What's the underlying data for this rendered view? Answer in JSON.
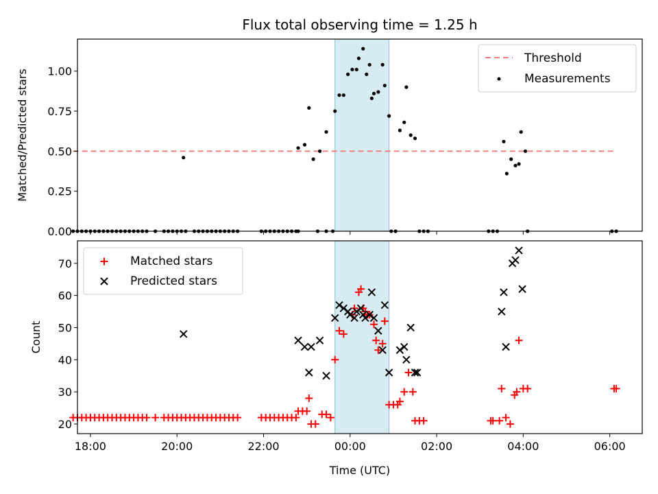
{
  "chart_data": [
    {
      "type": "scatter",
      "panel": "top",
      "title": "Flux total observing time = 1.25 h",
      "xlabel": "",
      "ylabel": "Matched/Predicted stars",
      "xlim": [
        -6.3,
        6.75
      ],
      "ylim": [
        0.0,
        1.2
      ],
      "x_unit": "hours relative to 00:00 UTC",
      "yticks": [
        0.0,
        0.25,
        0.5,
        0.75,
        1.0
      ],
      "ytick_labels": [
        "0.00",
        "0.25",
        "0.50",
        "0.75",
        "1.00"
      ],
      "xticks": [
        -6,
        -4,
        -2,
        0,
        2,
        4,
        6
      ],
      "xtick_labels": [
        "18:00",
        "20:00",
        "22:00",
        "00:00",
        "02:00",
        "04:00",
        "06:00"
      ],
      "highlight_span": [
        -0.35,
        0.9
      ],
      "threshold": {
        "name": "Threshold",
        "value": 0.5,
        "x_range": [
          -6.4,
          6.15
        ],
        "color": "#f08080"
      },
      "legend": {
        "position": "upper right",
        "entries": [
          "Threshold",
          "Measurements"
        ]
      },
      "series": [
        {
          "name": "Measurements",
          "color": "#000000",
          "points": [
            [
              -6.4,
              0
            ],
            [
              -6.3,
              0
            ],
            [
              -6.2,
              0
            ],
            [
              -6.1,
              0
            ],
            [
              -6.0,
              0
            ],
            [
              -5.9,
              0
            ],
            [
              -5.8,
              0
            ],
            [
              -5.7,
              0
            ],
            [
              -5.6,
              0
            ],
            [
              -5.5,
              0
            ],
            [
              -5.4,
              0
            ],
            [
              -5.3,
              0
            ],
            [
              -5.2,
              0
            ],
            [
              -5.1,
              0
            ],
            [
              -5.0,
              0
            ],
            [
              -4.9,
              0
            ],
            [
              -4.8,
              0
            ],
            [
              -4.7,
              0
            ],
            [
              -4.5,
              0
            ],
            [
              -4.3,
              0
            ],
            [
              -4.2,
              0
            ],
            [
              -4.1,
              0
            ],
            [
              -4.0,
              0
            ],
            [
              -3.9,
              0
            ],
            [
              -3.8,
              0
            ],
            [
              -3.85,
              0.46
            ],
            [
              -3.6,
              0
            ],
            [
              -3.5,
              0
            ],
            [
              -3.4,
              0
            ],
            [
              -3.3,
              0
            ],
            [
              -3.2,
              0
            ],
            [
              -3.1,
              0
            ],
            [
              -3.0,
              0
            ],
            [
              -2.9,
              0
            ],
            [
              -2.8,
              0
            ],
            [
              -2.7,
              0
            ],
            [
              -2.6,
              0
            ],
            [
              -2.05,
              0
            ],
            [
              -1.95,
              0
            ],
            [
              -1.85,
              0
            ],
            [
              -1.75,
              0
            ],
            [
              -1.65,
              0
            ],
            [
              -1.55,
              0
            ],
            [
              -1.45,
              0
            ],
            [
              -1.35,
              0
            ],
            [
              -1.25,
              0
            ],
            [
              -1.2,
              0
            ],
            [
              -1.2,
              0.52
            ],
            [
              -1.05,
              0.54
            ],
            [
              -0.95,
              0.77
            ],
            [
              -0.85,
              0.45
            ],
            [
              -0.7,
              0.5
            ],
            [
              -0.55,
              0.62
            ],
            [
              -0.35,
              0.75
            ],
            [
              -0.75,
              0
            ],
            [
              -0.55,
              0
            ],
            [
              -0.4,
              0
            ],
            [
              -0.25,
              0.85
            ],
            [
              -0.15,
              0.85
            ],
            [
              -0.05,
              0.98
            ],
            [
              0.05,
              1.01
            ],
            [
              0.15,
              1.01
            ],
            [
              0.2,
              1.08
            ],
            [
              0.3,
              1.14
            ],
            [
              0.38,
              0.98
            ],
            [
              0.45,
              1.04
            ],
            [
              0.5,
              0.83
            ],
            [
              0.55,
              0.86
            ],
            [
              0.65,
              0.87
            ],
            [
              0.75,
              1.04
            ],
            [
              0.8,
              0.91
            ],
            [
              0.9,
              0.72
            ],
            [
              1.15,
              0.63
            ],
            [
              1.25,
              0.68
            ],
            [
              1.3,
              0.9
            ],
            [
              1.4,
              0.6
            ],
            [
              1.5,
              0.58
            ],
            [
              0.95,
              0
            ],
            [
              1.05,
              0
            ],
            [
              1.6,
              0
            ],
            [
              1.7,
              0
            ],
            [
              1.8,
              0
            ],
            [
              3.2,
              0
            ],
            [
              3.3,
              0
            ],
            [
              3.4,
              0
            ],
            [
              3.55,
              0.56
            ],
            [
              3.62,
              0.36
            ],
            [
              3.72,
              0.45
            ],
            [
              3.82,
              0.41
            ],
            [
              3.9,
              0.42
            ],
            [
              3.95,
              0.62
            ],
            [
              4.05,
              0.5
            ],
            [
              4.1,
              0
            ],
            [
              6.05,
              0
            ],
            [
              6.15,
              0
            ]
          ]
        }
      ]
    },
    {
      "type": "scatter",
      "panel": "bottom",
      "title": "",
      "xlabel": "Time (UTC)",
      "ylabel": "Count",
      "xlim": [
        -6.3,
        6.75
      ],
      "ylim": [
        17,
        77
      ],
      "x_unit": "hours relative to 00:00 UTC",
      "yticks": [
        20,
        30,
        40,
        50,
        60,
        70
      ],
      "ytick_labels": [
        "20",
        "30",
        "40",
        "50",
        "60",
        "70"
      ],
      "xticks": [
        -6,
        -4,
        -2,
        0,
        2,
        4,
        6
      ],
      "xtick_labels": [
        "18:00",
        "20:00",
        "22:00",
        "00:00",
        "02:00",
        "04:00",
        "06:00"
      ],
      "highlight_span": [
        -0.35,
        0.9
      ],
      "legend": {
        "position": "upper left",
        "entries": [
          "Matched stars",
          "Predicted stars"
        ]
      },
      "series": [
        {
          "name": "Matched stars",
          "marker": "plus",
          "color": "#ff0000",
          "points": [
            [
              -6.4,
              22
            ],
            [
              -6.3,
              22
            ],
            [
              -6.2,
              22
            ],
            [
              -6.1,
              22
            ],
            [
              -6.0,
              22
            ],
            [
              -5.9,
              22
            ],
            [
              -5.8,
              22
            ],
            [
              -5.7,
              22
            ],
            [
              -5.6,
              22
            ],
            [
              -5.5,
              22
            ],
            [
              -5.4,
              22
            ],
            [
              -5.3,
              22
            ],
            [
              -5.2,
              22
            ],
            [
              -5.1,
              22
            ],
            [
              -5.0,
              22
            ],
            [
              -4.9,
              22
            ],
            [
              -4.8,
              22
            ],
            [
              -4.7,
              22
            ],
            [
              -4.5,
              22
            ],
            [
              -4.3,
              22
            ],
            [
              -4.2,
              22
            ],
            [
              -4.1,
              22
            ],
            [
              -4.0,
              22
            ],
            [
              -3.9,
              22
            ],
            [
              -3.8,
              22
            ],
            [
              -3.7,
              22
            ],
            [
              -3.6,
              22
            ],
            [
              -3.5,
              22
            ],
            [
              -3.4,
              22
            ],
            [
              -3.3,
              22
            ],
            [
              -3.2,
              22
            ],
            [
              -3.1,
              22
            ],
            [
              -3.0,
              22
            ],
            [
              -2.9,
              22
            ],
            [
              -2.8,
              22
            ],
            [
              -2.7,
              22
            ],
            [
              -2.6,
              22
            ],
            [
              -2.05,
              22
            ],
            [
              -1.95,
              22
            ],
            [
              -1.85,
              22
            ],
            [
              -1.75,
              22
            ],
            [
              -1.65,
              22
            ],
            [
              -1.55,
              22
            ],
            [
              -1.45,
              22
            ],
            [
              -1.35,
              22
            ],
            [
              -1.25,
              22
            ],
            [
              -1.2,
              24
            ],
            [
              -1.1,
              24
            ],
            [
              -1.0,
              24
            ],
            [
              -0.95,
              28
            ],
            [
              -0.9,
              20
            ],
            [
              -0.8,
              20
            ],
            [
              -0.65,
              23
            ],
            [
              -0.55,
              23
            ],
            [
              -0.45,
              22
            ],
            [
              -0.35,
              40
            ],
            [
              -0.25,
              49
            ],
            [
              -0.15,
              48
            ],
            [
              0.05,
              54
            ],
            [
              0.1,
              56
            ],
            [
              0.2,
              61
            ],
            [
              0.25,
              62
            ],
            [
              0.3,
              56
            ],
            [
              0.35,
              55
            ],
            [
              0.4,
              54
            ],
            [
              0.45,
              54
            ],
            [
              0.55,
              51
            ],
            [
              0.6,
              46
            ],
            [
              0.65,
              43
            ],
            [
              0.75,
              45
            ],
            [
              0.8,
              52
            ],
            [
              0.9,
              26
            ],
            [
              1.0,
              26
            ],
            [
              1.1,
              26
            ],
            [
              1.15,
              27
            ],
            [
              1.25,
              30
            ],
            [
              1.35,
              36
            ],
            [
              1.45,
              30
            ],
            [
              1.5,
              21
            ],
            [
              1.6,
              21
            ],
            [
              1.7,
              21
            ],
            [
              3.25,
              21
            ],
            [
              3.3,
              21
            ],
            [
              3.45,
              21
            ],
            [
              3.5,
              31
            ],
            [
              3.6,
              22
            ],
            [
              3.7,
              20
            ],
            [
              3.8,
              29
            ],
            [
              3.85,
              30
            ],
            [
              3.9,
              46
            ],
            [
              4.0,
              31
            ],
            [
              4.1,
              31
            ],
            [
              6.1,
              31
            ],
            [
              6.15,
              31
            ]
          ]
        },
        {
          "name": "Predicted stars",
          "marker": "x",
          "color": "#000000",
          "points": [
            [
              -3.85,
              48
            ],
            [
              -1.2,
              46
            ],
            [
              -1.05,
              44
            ],
            [
              -0.95,
              36
            ],
            [
              -0.9,
              44
            ],
            [
              -0.7,
              46
            ],
            [
              -0.55,
              35
            ],
            [
              -0.35,
              53
            ],
            [
              -0.25,
              57
            ],
            [
              -0.15,
              56
            ],
            [
              -0.05,
              55
            ],
            [
              0.0,
              54
            ],
            [
              0.1,
              53
            ],
            [
              0.15,
              55
            ],
            [
              0.25,
              56
            ],
            [
              0.3,
              54
            ],
            [
              0.35,
              53
            ],
            [
              0.45,
              54
            ],
            [
              0.5,
              61
            ],
            [
              0.55,
              53
            ],
            [
              0.65,
              49
            ],
            [
              0.75,
              43
            ],
            [
              0.8,
              57
            ],
            [
              0.9,
              36
            ],
            [
              1.15,
              43
            ],
            [
              1.25,
              44
            ],
            [
              1.3,
              40
            ],
            [
              1.4,
              50
            ],
            [
              1.5,
              36
            ],
            [
              1.55,
              36
            ],
            [
              3.5,
              55
            ],
            [
              3.55,
              61
            ],
            [
              3.6,
              44
            ],
            [
              3.75,
              70
            ],
            [
              3.82,
              71
            ],
            [
              3.9,
              74
            ],
            [
              3.98,
              62
            ]
          ]
        }
      ]
    }
  ]
}
